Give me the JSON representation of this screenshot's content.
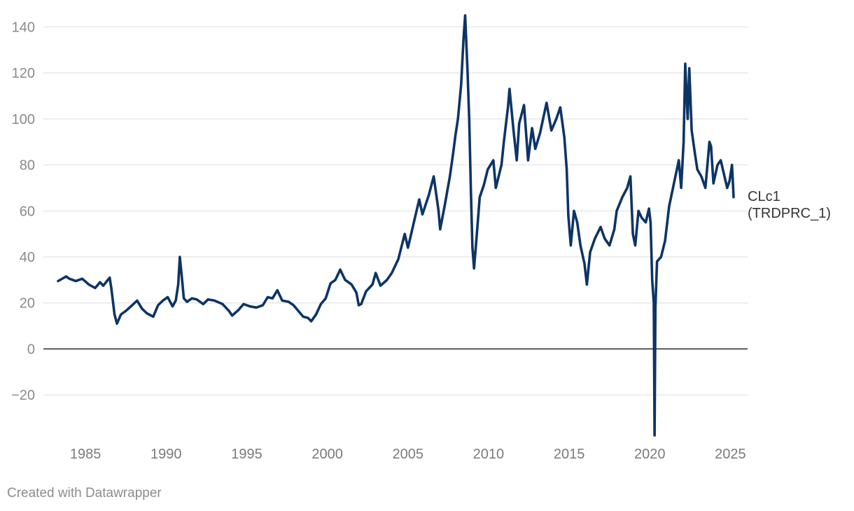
{
  "chart_data": {
    "type": "line",
    "title": "",
    "xlabel": "",
    "ylabel": "",
    "xlim": [
      1983.3,
      2025.2
    ],
    "ylim": [
      -37.6,
      145.3
    ],
    "y_ticks": [
      -20,
      0,
      20,
      40,
      60,
      80,
      100,
      120,
      140
    ],
    "y_tick_labels": [
      "−20",
      "0",
      "20",
      "40",
      "60",
      "80",
      "100",
      "120",
      "140"
    ],
    "x_ticks": [
      1985,
      1990,
      1995,
      2000,
      2005,
      2010,
      2015,
      2020,
      2025
    ],
    "x_tick_labels": [
      "1985",
      "1990",
      "1995",
      "2000",
      "2005",
      "2010",
      "2015",
      "2020",
      "2025"
    ],
    "grid": true,
    "colors": {
      "line": "#0d3466",
      "grid": "#e2e2e2",
      "zero_line": "#333333"
    },
    "series": [
      {
        "name": "CLc1 (TRDPRC_1)",
        "label_lines": [
          "CLc1",
          "(TRDPRC_1)"
        ],
        "points": [
          [
            1983.3,
            29.5
          ],
          [
            1983.8,
            31.5
          ],
          [
            1984.0,
            30.5
          ],
          [
            1984.4,
            29.5
          ],
          [
            1984.8,
            30.5
          ],
          [
            1985.2,
            28.0
          ],
          [
            1985.6,
            26.5
          ],
          [
            1985.9,
            29.0
          ],
          [
            1986.1,
            27.5
          ],
          [
            1986.5,
            31.0
          ],
          [
            1986.6,
            26.5
          ],
          [
            1986.8,
            15.0
          ],
          [
            1986.95,
            11.0
          ],
          [
            1987.2,
            15.0
          ],
          [
            1987.5,
            16.5
          ],
          [
            1987.9,
            19.0
          ],
          [
            1988.2,
            21.0
          ],
          [
            1988.5,
            17.5
          ],
          [
            1988.8,
            15.5
          ],
          [
            1989.2,
            14.0
          ],
          [
            1989.5,
            19.0
          ],
          [
            1989.8,
            21.0
          ],
          [
            1990.1,
            22.5
          ],
          [
            1990.4,
            18.5
          ],
          [
            1990.6,
            21.0
          ],
          [
            1990.75,
            28.0
          ],
          [
            1990.85,
            40.0
          ],
          [
            1990.95,
            33.0
          ],
          [
            1991.1,
            22.0
          ],
          [
            1991.3,
            20.5
          ],
          [
            1991.6,
            22.0
          ],
          [
            1991.9,
            21.5
          ],
          [
            1992.3,
            19.5
          ],
          [
            1992.6,
            21.5
          ],
          [
            1993.0,
            21.0
          ],
          [
            1993.5,
            19.5
          ],
          [
            1993.9,
            16.5
          ],
          [
            1994.1,
            14.5
          ],
          [
            1994.5,
            17.0
          ],
          [
            1994.8,
            19.5
          ],
          [
            1995.2,
            18.5
          ],
          [
            1995.6,
            18.0
          ],
          [
            1996.0,
            19.0
          ],
          [
            1996.3,
            22.5
          ],
          [
            1996.6,
            22.0
          ],
          [
            1996.9,
            25.5
          ],
          [
            1997.2,
            21.0
          ],
          [
            1997.6,
            20.5
          ],
          [
            1997.9,
            19.0
          ],
          [
            1998.2,
            16.5
          ],
          [
            1998.5,
            14.0
          ],
          [
            1998.8,
            13.5
          ],
          [
            1999.0,
            12.0
          ],
          [
            1999.3,
            15.0
          ],
          [
            1999.6,
            19.5
          ],
          [
            1999.9,
            22.0
          ],
          [
            2000.2,
            28.5
          ],
          [
            2000.5,
            30.0
          ],
          [
            2000.8,
            34.5
          ],
          [
            2001.1,
            30.0
          ],
          [
            2001.5,
            28.0
          ],
          [
            2001.8,
            24.5
          ],
          [
            2001.95,
            19.0
          ],
          [
            2002.1,
            19.5
          ],
          [
            2002.4,
            25.0
          ],
          [
            2002.8,
            28.0
          ],
          [
            2003.0,
            33.0
          ],
          [
            2003.3,
            27.5
          ],
          [
            2003.7,
            30.0
          ],
          [
            2004.0,
            33.0
          ],
          [
            2004.4,
            39.0
          ],
          [
            2004.8,
            50.0
          ],
          [
            2005.0,
            44.0
          ],
          [
            2005.3,
            53.0
          ],
          [
            2005.7,
            65.0
          ],
          [
            2005.9,
            58.5
          ],
          [
            2006.3,
            67.0
          ],
          [
            2006.6,
            75.0
          ],
          [
            2006.9,
            60.0
          ],
          [
            2007.0,
            52.0
          ],
          [
            2007.3,
            63.0
          ],
          [
            2007.6,
            75.0
          ],
          [
            2007.8,
            85.0
          ],
          [
            2007.95,
            93.0
          ],
          [
            2008.1,
            100.0
          ],
          [
            2008.3,
            115.0
          ],
          [
            2008.45,
            135.0
          ],
          [
            2008.55,
            145.0
          ],
          [
            2008.7,
            120.0
          ],
          [
            2008.8,
            100.0
          ],
          [
            2008.9,
            70.0
          ],
          [
            2009.0,
            44.0
          ],
          [
            2009.1,
            35.0
          ],
          [
            2009.25,
            48.0
          ],
          [
            2009.45,
            66.0
          ],
          [
            2009.7,
            71.0
          ],
          [
            2009.95,
            78.0
          ],
          [
            2010.3,
            82.0
          ],
          [
            2010.45,
            70.0
          ],
          [
            2010.8,
            80.0
          ],
          [
            2010.95,
            90.0
          ],
          [
            2011.2,
            105.0
          ],
          [
            2011.3,
            113.0
          ],
          [
            2011.55,
            95.0
          ],
          [
            2011.75,
            82.0
          ],
          [
            2011.9,
            98.0
          ],
          [
            2012.2,
            106.0
          ],
          [
            2012.45,
            82.0
          ],
          [
            2012.7,
            96.0
          ],
          [
            2012.9,
            87.0
          ],
          [
            2013.2,
            94.0
          ],
          [
            2013.6,
            107.0
          ],
          [
            2013.9,
            95.0
          ],
          [
            2014.2,
            100.0
          ],
          [
            2014.45,
            105.0
          ],
          [
            2014.7,
            92.0
          ],
          [
            2014.85,
            78.0
          ],
          [
            2014.95,
            58.0
          ],
          [
            2015.1,
            45.0
          ],
          [
            2015.3,
            60.0
          ],
          [
            2015.5,
            55.0
          ],
          [
            2015.7,
            45.0
          ],
          [
            2015.95,
            37.0
          ],
          [
            2016.1,
            28.0
          ],
          [
            2016.3,
            42.0
          ],
          [
            2016.6,
            48.0
          ],
          [
            2016.95,
            53.0
          ],
          [
            2017.2,
            48.0
          ],
          [
            2017.5,
            45.0
          ],
          [
            2017.8,
            52.0
          ],
          [
            2017.95,
            60.0
          ],
          [
            2018.3,
            66.0
          ],
          [
            2018.6,
            70.0
          ],
          [
            2018.8,
            75.0
          ],
          [
            2018.95,
            50.0
          ],
          [
            2019.1,
            45.0
          ],
          [
            2019.3,
            60.0
          ],
          [
            2019.5,
            57.0
          ],
          [
            2019.75,
            55.0
          ],
          [
            2019.95,
            61.0
          ],
          [
            2020.05,
            55.0
          ],
          [
            2020.15,
            30.0
          ],
          [
            2020.25,
            20.0
          ],
          [
            2020.3,
            -37.6
          ],
          [
            2020.35,
            18.0
          ],
          [
            2020.45,
            38.0
          ],
          [
            2020.7,
            40.0
          ],
          [
            2020.95,
            47.0
          ],
          [
            2021.2,
            62.0
          ],
          [
            2021.5,
            72.0
          ],
          [
            2021.8,
            82.0
          ],
          [
            2021.95,
            70.0
          ],
          [
            2022.1,
            90.0
          ],
          [
            2022.2,
            124.0
          ],
          [
            2022.35,
            100.0
          ],
          [
            2022.45,
            122.0
          ],
          [
            2022.6,
            95.0
          ],
          [
            2022.8,
            85.0
          ],
          [
            2022.95,
            78.0
          ],
          [
            2023.2,
            75.0
          ],
          [
            2023.45,
            70.0
          ],
          [
            2023.7,
            90.0
          ],
          [
            2023.8,
            88.0
          ],
          [
            2023.95,
            72.0
          ],
          [
            2024.2,
            80.0
          ],
          [
            2024.4,
            82.0
          ],
          [
            2024.6,
            76.0
          ],
          [
            2024.8,
            70.0
          ],
          [
            2024.95,
            73.0
          ],
          [
            2025.1,
            80.0
          ],
          [
            2025.2,
            66.0
          ]
        ]
      }
    ]
  },
  "footer": {
    "credit": "Created with Datawrapper"
  }
}
